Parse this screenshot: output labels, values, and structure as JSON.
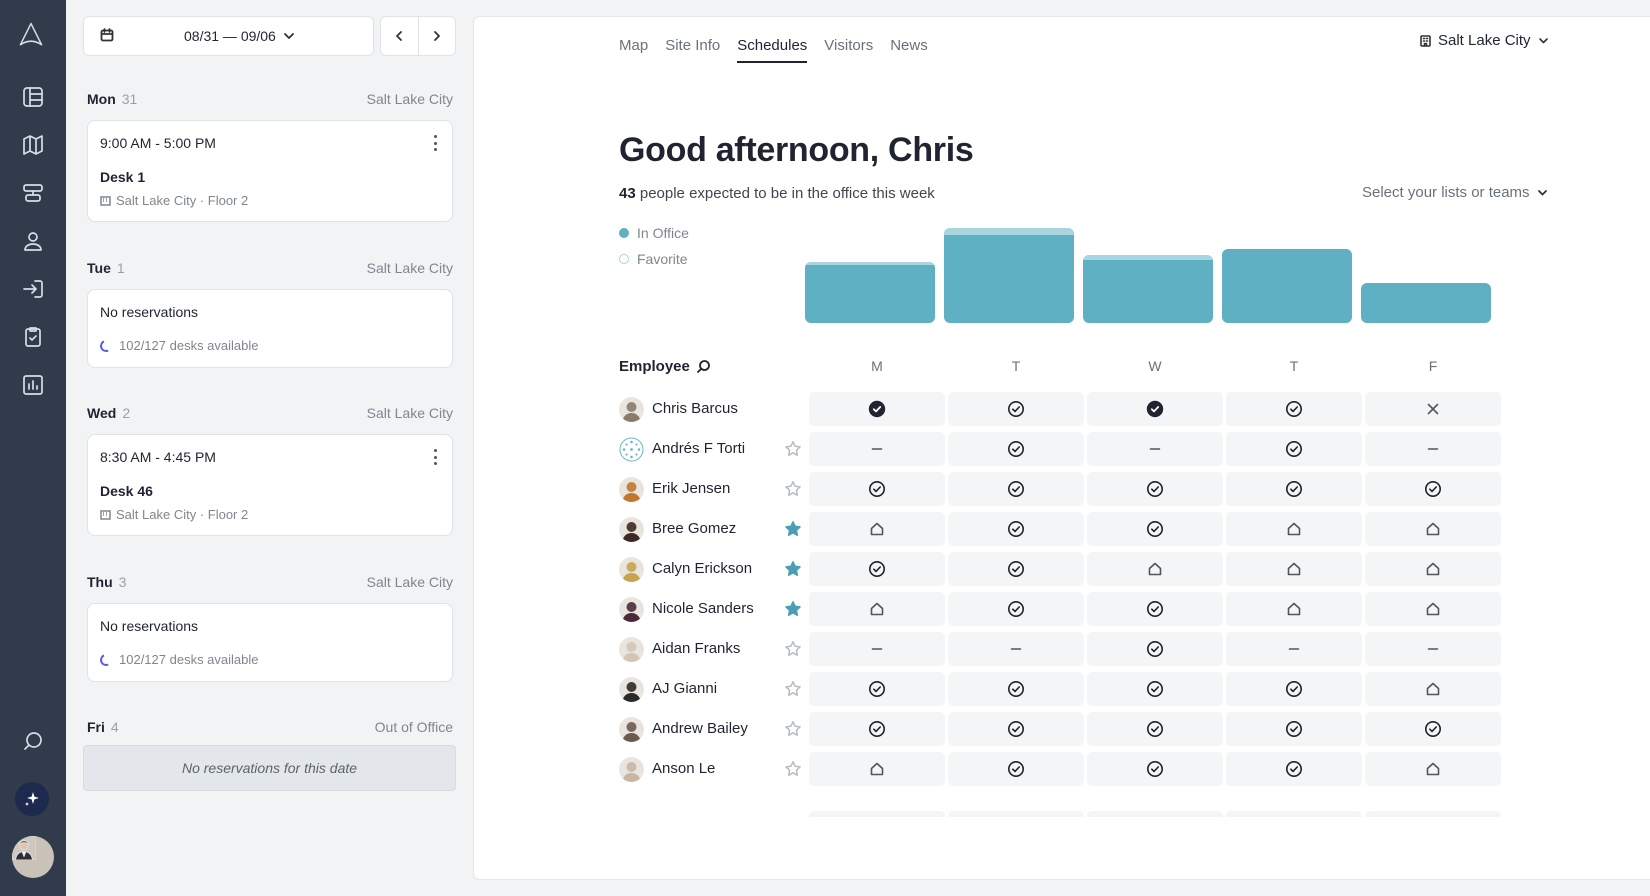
{
  "app": {
    "rail_icons": [
      "logo-icon",
      "dashboard-icon",
      "map-icon",
      "desk-icon",
      "person-icon",
      "checkin-icon",
      "clipboard-icon",
      "analytics-icon",
      "search-icon"
    ]
  },
  "left_panel": {
    "date_range": "08/31 — 09/06",
    "days": [
      {
        "name": "Mon",
        "date": "31",
        "location": "Salt Lake City",
        "type": "reservation",
        "time": "9:00 AM - 5:00 PM",
        "desk": "Desk 1",
        "place": "Salt Lake City · Floor 2"
      },
      {
        "name": "Tue",
        "date": "1",
        "location": "Salt Lake City",
        "type": "none",
        "no_res": "No reservations",
        "availability": "102/127 desks available"
      },
      {
        "name": "Wed",
        "date": "2",
        "location": "Salt Lake City",
        "type": "reservation",
        "time": "8:30 AM - 4:45 PM",
        "desk": "Desk 46",
        "place": "Salt Lake City · Floor 2"
      },
      {
        "name": "Thu",
        "date": "3",
        "location": "Salt Lake City",
        "type": "none",
        "no_res": "No reservations",
        "availability": "102/127 desks available"
      },
      {
        "name": "Fri",
        "date": "4",
        "location": "Out of Office",
        "type": "ooo",
        "message": "No reservations for this date"
      }
    ]
  },
  "main": {
    "tabs": [
      "Map",
      "Site Info",
      "Schedules",
      "Visitors",
      "News"
    ],
    "active_tab": "Schedules",
    "location": "Salt Lake City",
    "greeting": "Good afternoon, Chris",
    "expected_count": "43",
    "expected_text": "people expected to be in the office this week",
    "lists_select": "Select your lists or teams",
    "legend": {
      "in_office": "In Office",
      "favorite": "Favorite"
    },
    "colors": {
      "in_office": "#5fb0c2",
      "favorite": "#a9d5de",
      "star": "#4a9fb4",
      "brand_dark": "#323b4b"
    },
    "employee_header": "Employee",
    "day_headers": [
      "M",
      "T",
      "W",
      "T",
      "F"
    ]
  },
  "chart_data": {
    "type": "bar",
    "categories": [
      "M",
      "T",
      "W",
      "T",
      "F"
    ],
    "series": [
      {
        "name": "In Office",
        "values": [
          58,
          88,
          63,
          74,
          40
        ]
      },
      {
        "name": "Favorite",
        "values": [
          3,
          7,
          5,
          0,
          0
        ]
      }
    ],
    "ylim": [
      0,
      100
    ]
  },
  "employees": [
    {
      "name": "Chris Barcus",
      "star": null,
      "status": [
        "check-filled",
        "check",
        "check-filled",
        "check",
        "x"
      ],
      "avatar": "#8a7a6a"
    },
    {
      "name": "Andrés F Torti",
      "star": false,
      "status": [
        "dash",
        "check",
        "dash",
        "check",
        "dash"
      ],
      "avatar": "pattern"
    },
    {
      "name": "Erik Jensen",
      "star": false,
      "status": [
        "check",
        "check",
        "check",
        "check",
        "check"
      ],
      "avatar": "#c2772f"
    },
    {
      "name": "Bree Gomez",
      "star": true,
      "status": [
        "home",
        "check",
        "check",
        "home",
        "home"
      ],
      "avatar": "#3b2a24"
    },
    {
      "name": "Calyn Erickson",
      "star": true,
      "status": [
        "check",
        "check",
        "home",
        "home",
        "home"
      ],
      "avatar": "#c9a24e"
    },
    {
      "name": "Nicole Sanders",
      "star": true,
      "status": [
        "home",
        "check",
        "check",
        "home",
        "home"
      ],
      "avatar": "#4a2a3a"
    },
    {
      "name": "Aidan Franks",
      "star": false,
      "status": [
        "dash",
        "dash",
        "check",
        "dash",
        "dash"
      ],
      "avatar": "#d5c5b5"
    },
    {
      "name": "AJ Gianni",
      "star": false,
      "status": [
        "check",
        "check",
        "check",
        "check",
        "home"
      ],
      "avatar": "#2a2a2a"
    },
    {
      "name": "Andrew Bailey",
      "star": false,
      "status": [
        "check",
        "check",
        "check",
        "check",
        "check"
      ],
      "avatar": "#6b5a50"
    },
    {
      "name": "Anson Le",
      "star": false,
      "status": [
        "home",
        "check",
        "check",
        "check",
        "home"
      ],
      "avatar": "#c8b6a4"
    }
  ]
}
